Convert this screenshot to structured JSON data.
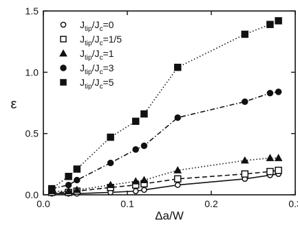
{
  "chart_data": {
    "type": "scatter",
    "xlabel": "Δa/W",
    "ylabel": "ε",
    "xlim": [
      0,
      0.3
    ],
    "ylim": [
      0,
      1.5
    ],
    "xticks": [
      0,
      0.1,
      0.2,
      0.3
    ],
    "xtick_labels": [
      "0.0",
      "0.1",
      "0.2",
      "0.3"
    ],
    "yticks": [
      0,
      0.5,
      1.0,
      1.5
    ],
    "ytick_labels": [
      "0.0",
      "0.5",
      "1.0",
      "1.5"
    ],
    "grid": false,
    "legend_position": "top-left",
    "series": [
      {
        "name": "Jtip/Jc=0",
        "marker": "open-circle",
        "line": "solid",
        "x": [
          0.01,
          0.03,
          0.04,
          0.08,
          0.11,
          0.12,
          0.16,
          0.24,
          0.27,
          0.28
        ],
        "y": [
          0.01,
          0.01,
          0.01,
          0.02,
          0.03,
          0.04,
          0.08,
          0.13,
          0.16,
          0.17
        ]
      },
      {
        "name": "Jtip/Jc=1/5",
        "marker": "open-square",
        "line": "dashed",
        "x": [
          0.01,
          0.03,
          0.04,
          0.08,
          0.11,
          0.12,
          0.16,
          0.24,
          0.27,
          0.28
        ],
        "y": [
          0.02,
          0.02,
          0.03,
          0.06,
          0.08,
          0.09,
          0.13,
          0.17,
          0.19,
          0.2
        ]
      },
      {
        "name": "Jtip/Jc=1",
        "marker": "filled-triangle",
        "line": "dotted",
        "x": [
          0.01,
          0.03,
          0.04,
          0.08,
          0.11,
          0.12,
          0.16,
          0.24,
          0.27,
          0.28
        ],
        "y": [
          0.03,
          0.03,
          0.04,
          0.08,
          0.11,
          0.12,
          0.2,
          0.28,
          0.3,
          0.3
        ]
      },
      {
        "name": "Jtip/Jc=3",
        "marker": "filled-circle",
        "line": "dash-dot",
        "x": [
          0.01,
          0.03,
          0.04,
          0.08,
          0.11,
          0.12,
          0.16,
          0.24,
          0.27,
          0.28
        ],
        "y": [
          0.05,
          0.08,
          0.12,
          0.26,
          0.37,
          0.4,
          0.63,
          0.76,
          0.83,
          0.84
        ]
      },
      {
        "name": "Jtip/Jc=5",
        "marker": "filled-square",
        "line": "dotted",
        "x": [
          0.01,
          0.03,
          0.04,
          0.08,
          0.11,
          0.12,
          0.16,
          0.24,
          0.27,
          0.28
        ],
        "y": [
          0.05,
          0.15,
          0.21,
          0.47,
          0.6,
          0.66,
          1.04,
          1.31,
          1.39,
          1.42
        ]
      }
    ]
  }
}
